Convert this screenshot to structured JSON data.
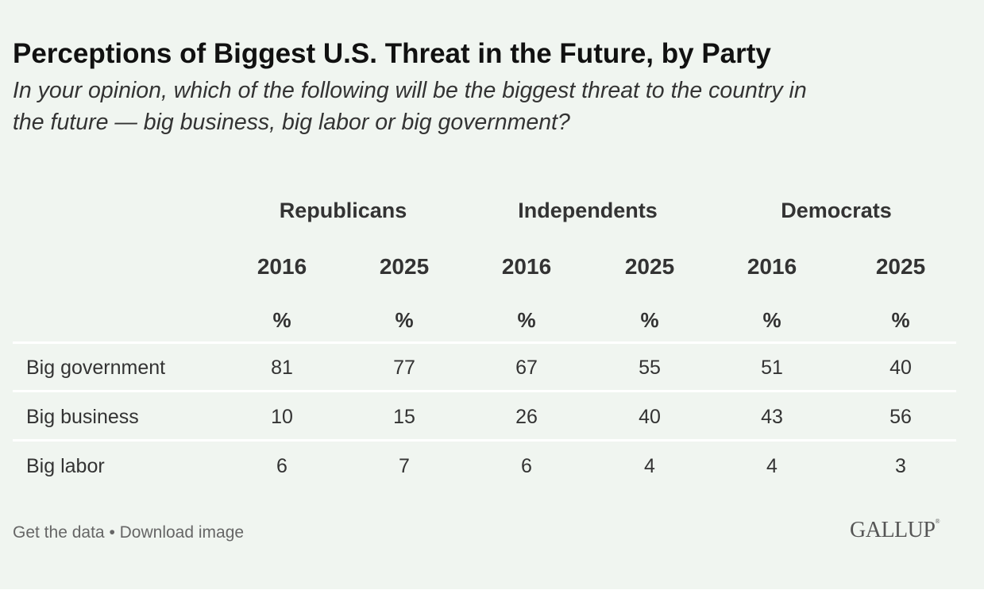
{
  "chart_data": {
    "type": "table",
    "title": "Perceptions of Biggest U.S. Threat in the Future, by Party",
    "subtitle_lines": [
      "In your opinion, which of the following will be the biggest threat to the country in",
      "the future — big business, big labor or big government?"
    ],
    "groups": [
      "Republicans",
      "Independents",
      "Democrats"
    ],
    "years": [
      "2016",
      "2025",
      "2016",
      "2025",
      "2016",
      "2025"
    ],
    "unit": "%",
    "rows": [
      {
        "label": "Big government",
        "values": [
          "81",
          "77",
          "67",
          "55",
          "51",
          "40"
        ]
      },
      {
        "label": "Big business",
        "values": [
          "10",
          "15",
          "26",
          "40",
          "43",
          "56"
        ]
      },
      {
        "label": "Big labor",
        "values": [
          "6",
          "7",
          "6",
          "4",
          "4",
          "3"
        ]
      }
    ]
  },
  "footer": {
    "get_data": "Get the data",
    "bullet": "•",
    "download": "Download image"
  },
  "logo": "GALLUP",
  "colors": {
    "background": "#f0f5f0",
    "text": "#333333",
    "separator": "#ffffff"
  }
}
